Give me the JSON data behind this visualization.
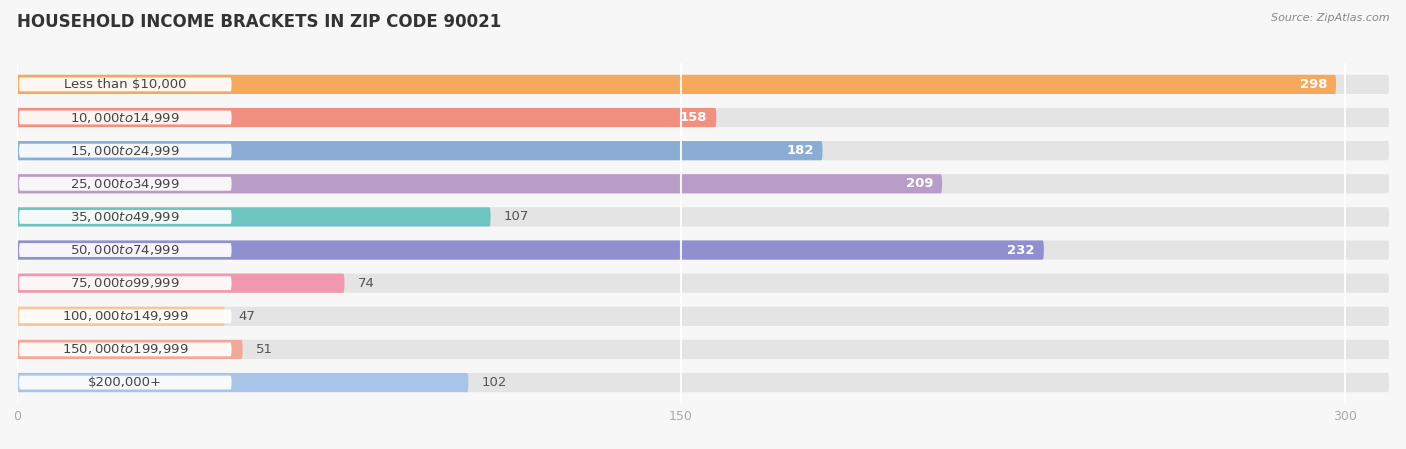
{
  "title": "HOUSEHOLD INCOME BRACKETS IN ZIP CODE 90021",
  "source": "Source: ZipAtlas.com",
  "categories": [
    "Less than $10,000",
    "$10,000 to $14,999",
    "$15,000 to $24,999",
    "$25,000 to $34,999",
    "$35,000 to $49,999",
    "$50,000 to $74,999",
    "$75,000 to $99,999",
    "$100,000 to $149,999",
    "$150,000 to $199,999",
    "$200,000+"
  ],
  "values": [
    298,
    158,
    182,
    209,
    107,
    232,
    74,
    47,
    51,
    102
  ],
  "bar_colors": [
    "#F5A95C",
    "#F09080",
    "#8BADD4",
    "#B89DC8",
    "#6DC4C0",
    "#9090D0",
    "#F098B0",
    "#F5C898",
    "#F0A898",
    "#A8C4E8"
  ],
  "label_inside_threshold": 150,
  "data_max": 300,
  "xticks": [
    0,
    150,
    300
  ],
  "background_color": "#f7f7f7",
  "bar_background_color": "#e4e4e4",
  "title_fontsize": 12,
  "label_fontsize": 9.5,
  "value_fontsize": 9.5,
  "bar_height": 0.58
}
